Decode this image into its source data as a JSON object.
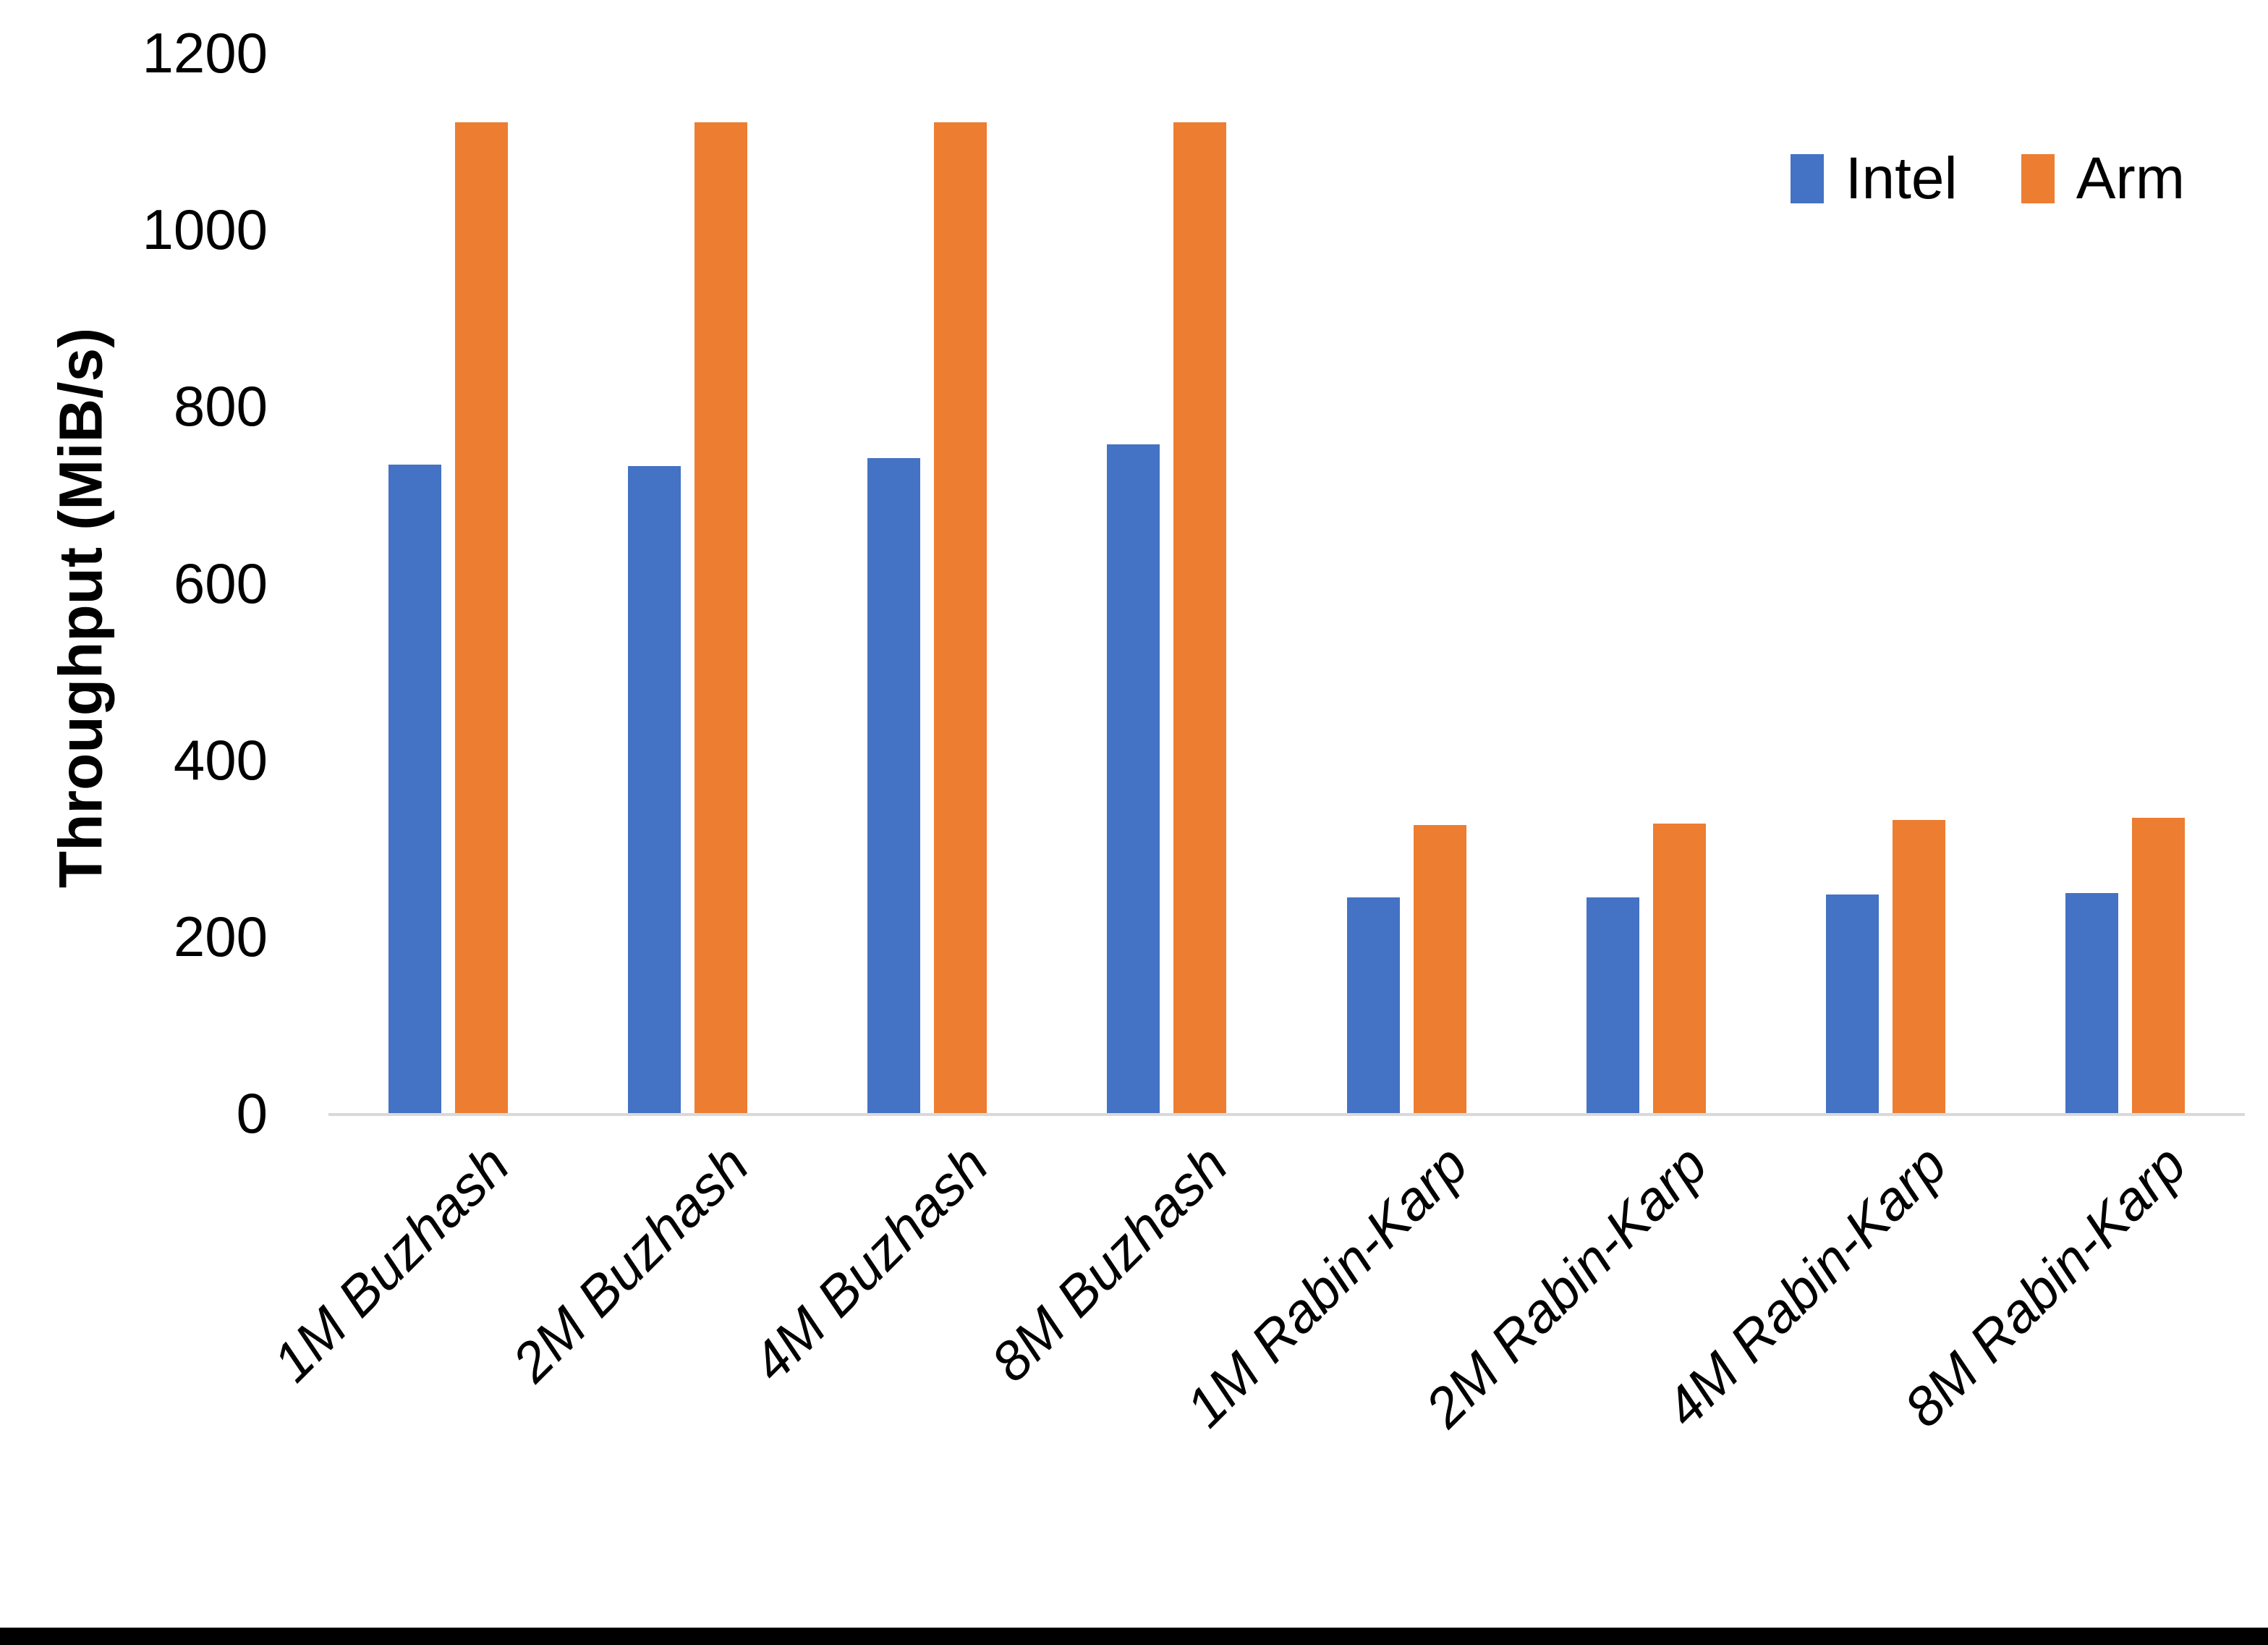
{
  "chart_data": {
    "type": "bar",
    "title": "",
    "ylabel": "Throughput (MiB/s)",
    "xlabel": "",
    "ylim": [
      0,
      1200
    ],
    "ytick_values": [
      0,
      200,
      400,
      600,
      800,
      1000,
      1200
    ],
    "ytick_labels": [
      "0",
      "200",
      "400",
      "600",
      "800",
      "1000",
      "1200"
    ],
    "categories": [
      "1M Buzhash",
      "2M Buzhash",
      "4M Buzhash",
      "8M Buzhash",
      "1M Rabin-Karp",
      "2M Rabin-Karp",
      "4M Rabin-Karp",
      "8M Rabin-Karp"
    ],
    "series": [
      {
        "name": "Intel",
        "color": "#4472C4",
        "values": [
          734,
          732,
          741,
          757,
          244,
          244,
          247,
          249
        ]
      },
      {
        "name": "Arm",
        "color": "#ED7D31",
        "values": [
          1121,
          1121,
          1121,
          1121,
          326,
          328,
          332,
          334
        ]
      }
    ],
    "legend": {
      "position": "top-right",
      "entries": [
        "Intel",
        "Arm"
      ]
    },
    "grid": false,
    "axis_line_color": "#D9D9D9",
    "text_color": "#000000"
  }
}
